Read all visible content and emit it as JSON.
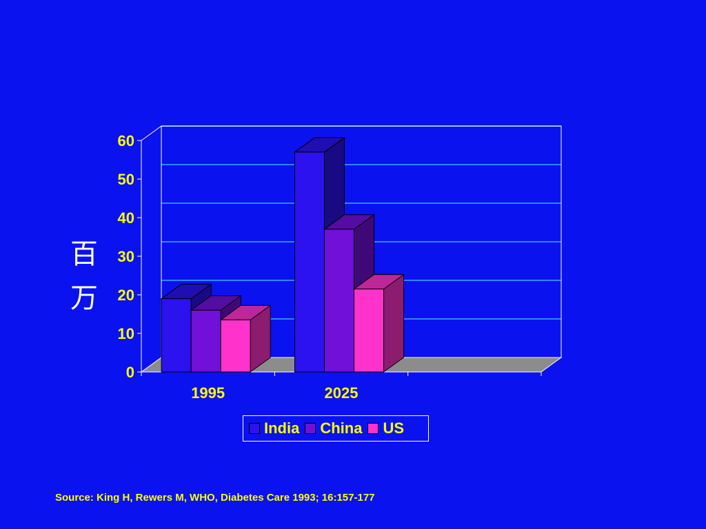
{
  "chart_data": {
    "type": "bar",
    "categories": [
      "1995",
      "2025",
      ""
    ],
    "series": [
      {
        "name": "India",
        "values": [
          19,
          57,
          null
        ],
        "color": "#2B12EE"
      },
      {
        "name": "China",
        "values": [
          16,
          37,
          null
        ],
        "color": "#7010D8"
      },
      {
        "name": "US",
        "values": [
          13.5,
          21.5,
          null
        ],
        "color": "#FF33CC"
      }
    ],
    "yticks": [
      "0",
      "10",
      "20",
      "30",
      "40",
      "50",
      "60"
    ],
    "ylim": [
      0,
      60
    ],
    "ylabel": "百万",
    "ylabel_chars": [
      "百",
      "万"
    ],
    "legend_position": "bottom",
    "grid": true,
    "floor_color": "#8C8C8C",
    "label_color": "#FFFF00"
  },
  "source": "Source: King H, Rewers M, WHO, Diabetes Care 1993; 16:157-177"
}
